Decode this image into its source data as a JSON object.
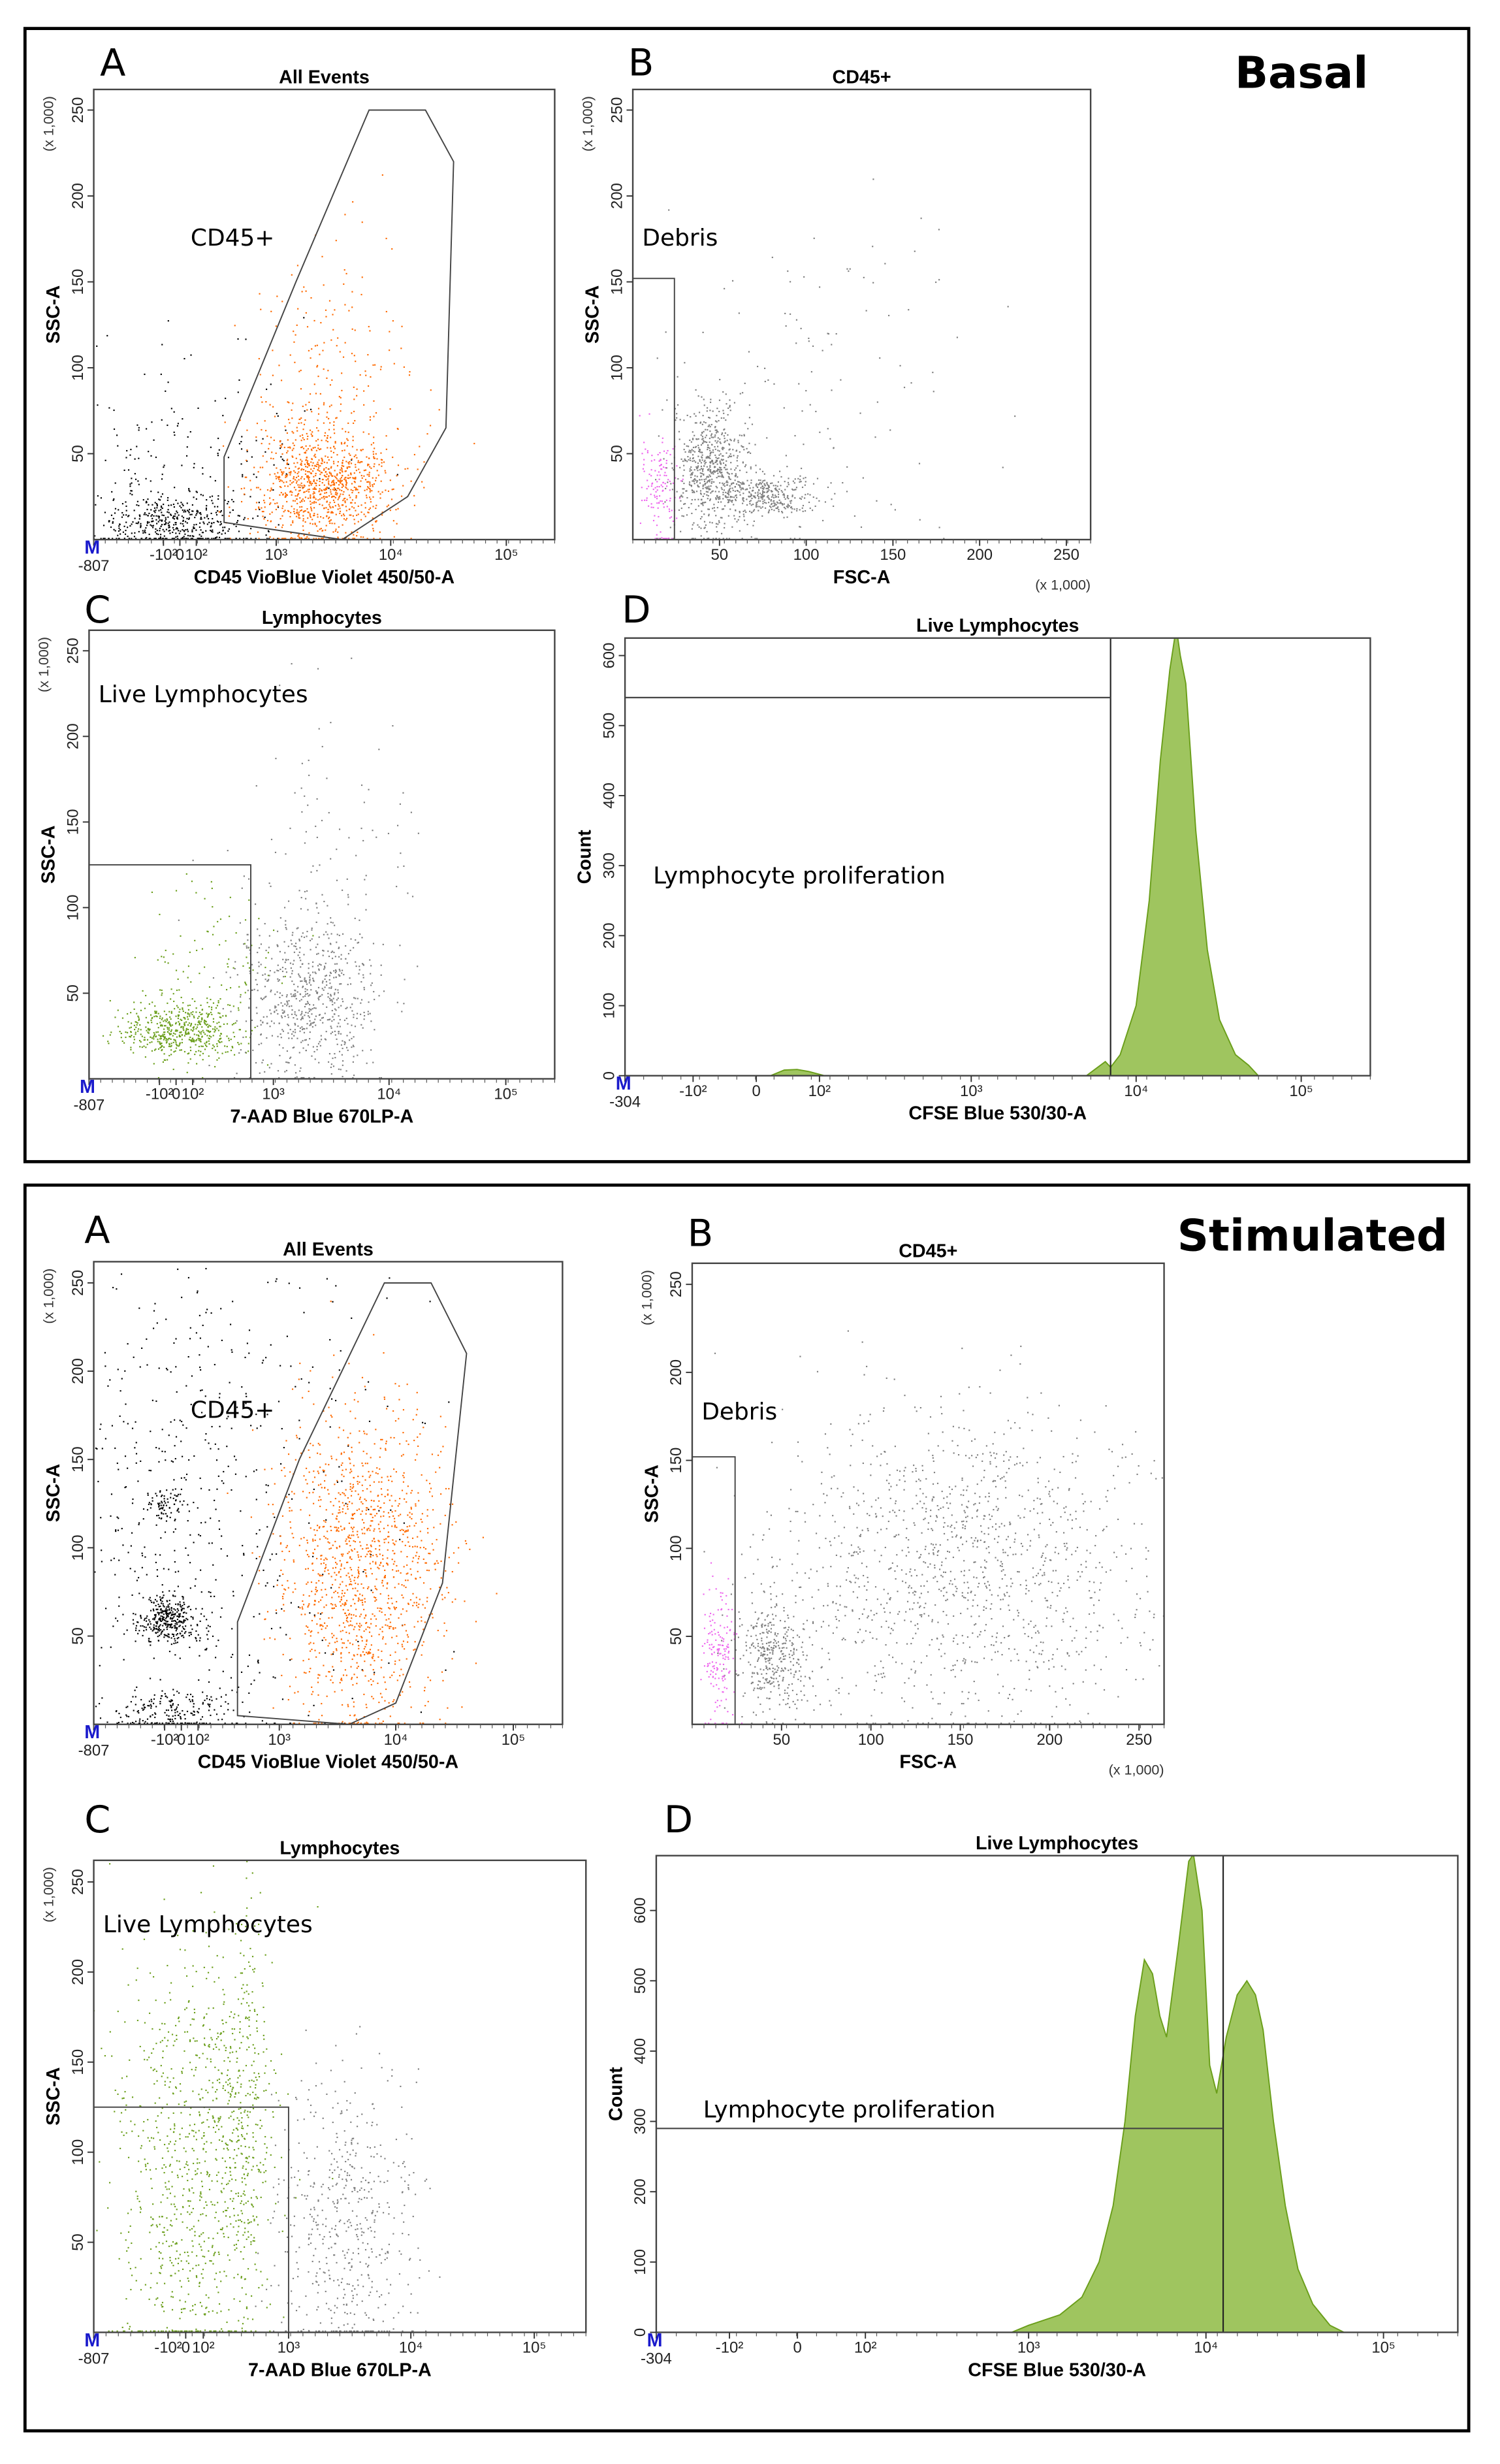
{
  "conditions": [
    {
      "label": "Basal"
    },
    {
      "label": "Stimulated"
    }
  ],
  "colors": {
    "orange": "#ff6a00",
    "black": "#000000",
    "gray": "#7f7f7f",
    "magenta": "#ee66ee",
    "green": "#6a9e1a",
    "hist_fill": "#9fc55f",
    "hist_line": "#6a9e1a",
    "m_marker": "#1a1acc"
  },
  "chart_data": [
    {
      "condition": "Basal",
      "panel": "A",
      "type": "scatter",
      "title": "All Events",
      "xlabel": "CD45 VioBlue Violet 450/50-A",
      "ylabel": "SSC-A",
      "y_multiplier": "(x 1,000)",
      "marker": "M",
      "xscale": "biexp",
      "xlim": [
        -807,
        262144
      ],
      "ylim": [
        0,
        262
      ],
      "xticks": [
        {
          "v": -807,
          "t": "-807"
        },
        {
          "v": -100,
          "t": "-10²"
        },
        {
          "v": 0,
          "t": "0"
        },
        {
          "v": 100,
          "t": "10²"
        },
        {
          "v": 1000,
          "t": "10³"
        },
        {
          "v": 10000,
          "t": "10⁴"
        },
        {
          "v": 100000,
          "t": "10⁵"
        }
      ],
      "yticks": [
        50,
        100,
        150,
        200,
        250
      ],
      "gate": {
        "shape": "polygon",
        "label": "CD45+",
        "points": [
          [
            300,
            14
          ],
          [
            300,
            48
          ],
          [
            1500,
            150
          ],
          [
            6500,
            250
          ],
          [
            20000,
            250
          ],
          [
            35000,
            220
          ],
          [
            30000,
            65
          ],
          [
            14000,
            25
          ],
          [
            3800,
            0
          ],
          [
            300,
            10
          ]
        ]
      },
      "clusters": [
        {
          "x": -60,
          "sx": 0.3,
          "y": 10,
          "sy": 8,
          "n": 380,
          "color": "black"
        },
        {
          "x": -30,
          "sx": 0.6,
          "y": 40,
          "sy": 35,
          "n": 260,
          "color": "black"
        },
        {
          "x": 2500,
          "sx": 0.3,
          "y": 32,
          "sy": 16,
          "n": 900,
          "color": "orange"
        },
        {
          "x": 3000,
          "sx": 0.35,
          "y": 80,
          "sy": 40,
          "n": 260,
          "color": "orange"
        }
      ]
    },
    {
      "condition": "Basal",
      "panel": "B",
      "type": "scatter",
      "title": "CD45+",
      "xlabel": "FSC-A",
      "ylabel": "SSC-A",
      "y_multiplier": "(x 1,000)",
      "x_multiplier": "(x 1,000)",
      "xscale": "linear",
      "xlim": [
        0,
        264
      ],
      "ylim": [
        0,
        262
      ],
      "xticks": [
        {
          "v": 50,
          "t": "50"
        },
        {
          "v": 100,
          "t": "100"
        },
        {
          "v": 150,
          "t": "150"
        },
        {
          "v": 200,
          "t": "200"
        },
        {
          "v": 250,
          "t": "250"
        }
      ],
      "yticks": [
        50,
        100,
        150,
        200,
        250
      ],
      "gate": {
        "shape": "rect",
        "label": "Debris",
        "points": [
          [
            0,
            0
          ],
          [
            24,
            152
          ]
        ]
      },
      "clusters": [
        {
          "x": 45,
          "sx": 11,
          "y": 42,
          "sy": 18,
          "n": 650,
          "color": "gray"
        },
        {
          "x": 78,
          "sx": 14,
          "y": 26,
          "sy": 6,
          "n": 330,
          "color": "gray"
        },
        {
          "x": 90,
          "sx": 55,
          "y": 80,
          "sy": 55,
          "n": 150,
          "color": "gray"
        },
        {
          "x": 14,
          "sx": 5,
          "y": 30,
          "sy": 16,
          "n": 130,
          "color": "magenta"
        }
      ]
    },
    {
      "condition": "Basal",
      "panel": "C",
      "type": "scatter",
      "title": "Lymphocytes",
      "xlabel": "7-AAD Blue 670LP-A",
      "ylabel": "SSC-A",
      "y_multiplier": "(x 1,000)",
      "marker": "M",
      "xscale": "biexp",
      "xlim": [
        -807,
        262144
      ],
      "ylim": [
        0,
        262
      ],
      "xticks": [
        {
          "v": -807,
          "t": "-807"
        },
        {
          "v": -100,
          "t": "-10²"
        },
        {
          "v": 0,
          "t": "0"
        },
        {
          "v": 100,
          "t": "10²"
        },
        {
          "v": 1000,
          "t": "10³"
        },
        {
          "v": 10000,
          "t": "10⁴"
        },
        {
          "v": 100000,
          "t": "10⁵"
        }
      ],
      "yticks": [
        50,
        100,
        150,
        200,
        250
      ],
      "gate": {
        "shape": "rect",
        "label": "Live Lymphocytes",
        "points": [
          [
            -807,
            0
          ],
          [
            620,
            125
          ]
        ]
      },
      "clusters": [
        {
          "x": 20,
          "sx": 0.25,
          "y": 28,
          "sy": 8,
          "n": 520,
          "color": "green"
        },
        {
          "x": 150,
          "sx": 0.3,
          "y": 60,
          "sy": 25,
          "n": 120,
          "color": "green"
        },
        {
          "x": 2000,
          "sx": 0.3,
          "y": 45,
          "sy": 25,
          "n": 650,
          "color": "gray"
        },
        {
          "x": 2500,
          "sx": 0.4,
          "y": 120,
          "sy": 50,
          "n": 120,
          "color": "gray"
        }
      ]
    },
    {
      "condition": "Basal",
      "panel": "D",
      "type": "area",
      "title": "Live Lymphocytes",
      "xlabel": "CFSE Blue 530/30-A",
      "ylabel": "Count",
      "marker": "M",
      "xscale": "biexp100",
      "xlim": [
        -304,
        262144
      ],
      "ylim": [
        0,
        625
      ],
      "xticks": [
        {
          "v": -304,
          "t": "-304"
        },
        {
          "v": -100,
          "t": "-10²"
        },
        {
          "v": 0,
          "t": "0"
        },
        {
          "v": 100,
          "t": "10²"
        },
        {
          "v": 1000,
          "t": "10³"
        },
        {
          "v": 10000,
          "t": "10⁴"
        },
        {
          "v": 100000,
          "t": "10⁵"
        }
      ],
      "yticks": [
        0,
        100,
        200,
        300,
        400,
        500,
        600
      ],
      "gate": {
        "shape": "hline",
        "label": "Lymphocyte proliferation",
        "x_split": 7000,
        "y_level": 540
      },
      "x": [
        20,
        40,
        60,
        80,
        110,
        5000,
        6500,
        7000,
        8000,
        10000,
        12000,
        14000,
        16000,
        17500,
        18500,
        20000,
        23000,
        27000,
        32000,
        40000,
        48000,
        55000
      ],
      "y": [
        0,
        8,
        9,
        6,
        0,
        0,
        20,
        12,
        30,
        100,
        250,
        450,
        580,
        640,
        600,
        560,
        350,
        180,
        80,
        30,
        15,
        0
      ]
    },
    {
      "condition": "Stimulated",
      "panel": "A",
      "type": "scatter",
      "title": "All Events",
      "xlabel": "CD45 VioBlue Violet 450/50-A",
      "ylabel": "SSC-A",
      "y_multiplier": "(x 1,000)",
      "marker": "M",
      "xscale": "biexp",
      "xlim": [
        -807,
        262144
      ],
      "ylim": [
        0,
        262
      ],
      "xticks": [
        {
          "v": -807,
          "t": "-807"
        },
        {
          "v": -100,
          "t": "-10²"
        },
        {
          "v": 0,
          "t": "0"
        },
        {
          "v": 100,
          "t": "10²"
        },
        {
          "v": 1000,
          "t": "10³"
        },
        {
          "v": 10000,
          "t": "10⁴"
        },
        {
          "v": 100000,
          "t": "10⁵"
        }
      ],
      "yticks": [
        50,
        100,
        150,
        200,
        250
      ],
      "gate": {
        "shape": "polygon",
        "label": "CD45+",
        "points": [
          [
            400,
            5
          ],
          [
            400,
            58
          ],
          [
            1500,
            150
          ],
          [
            8000,
            250
          ],
          [
            20000,
            250
          ],
          [
            40000,
            210
          ],
          [
            25000,
            80
          ],
          [
            10000,
            12
          ],
          [
            4000,
            0
          ],
          [
            400,
            5
          ]
        ]
      },
      "clusters": [
        {
          "x": -90,
          "sx": 0.12,
          "y": 60,
          "sy": 7,
          "n": 350,
          "color": "black"
        },
        {
          "x": -110,
          "sx": 0.1,
          "y": 125,
          "sy": 5,
          "n": 70,
          "color": "black"
        },
        {
          "x": -60,
          "sx": 0.3,
          "y": 8,
          "sy": 6,
          "n": 200,
          "color": "black"
        },
        {
          "x": 50,
          "sx": 0.8,
          "y": 130,
          "sy": 80,
          "n": 650,
          "color": "black"
        },
        {
          "x": 5000,
          "sx": 0.35,
          "y": 90,
          "sy": 45,
          "n": 1300,
          "color": "orange"
        }
      ]
    },
    {
      "condition": "Stimulated",
      "panel": "B",
      "type": "scatter",
      "title": "CD45+",
      "xlabel": "FSC-A",
      "ylabel": "SSC-A",
      "y_multiplier": "(x 1,000)",
      "x_multiplier": "(x 1,000)",
      "xscale": "linear",
      "xlim": [
        0,
        264
      ],
      "ylim": [
        0,
        262
      ],
      "xticks": [
        {
          "v": 50,
          "t": "50"
        },
        {
          "v": 100,
          "t": "100"
        },
        {
          "v": 150,
          "t": "150"
        },
        {
          "v": 200,
          "t": "200"
        },
        {
          "v": 250,
          "t": "250"
        }
      ],
      "yticks": [
        50,
        100,
        150,
        200,
        250
      ],
      "gate": {
        "shape": "rect",
        "label": "Debris",
        "points": [
          [
            0,
            0
          ],
          [
            24,
            152
          ]
        ]
      },
      "clusters": [
        {
          "x": 150,
          "sx": 55,
          "y": 90,
          "sy": 45,
          "n": 1300,
          "color": "gray"
        },
        {
          "x": 45,
          "sx": 9,
          "y": 38,
          "sy": 15,
          "n": 350,
          "color": "gray"
        },
        {
          "x": 14,
          "sx": 5,
          "y": 40,
          "sy": 20,
          "n": 160,
          "color": "magenta"
        }
      ]
    },
    {
      "condition": "Stimulated",
      "panel": "C",
      "type": "scatter",
      "title": "Lymphocytes",
      "xlabel": "7-AAD Blue 670LP-A",
      "ylabel": "SSC-A",
      "y_multiplier": "(x 1,000)",
      "marker": "M",
      "xscale": "biexp",
      "xlim": [
        -807,
        262144
      ],
      "ylim": [
        0,
        262
      ],
      "xticks": [
        {
          "v": -807,
          "t": "-807"
        },
        {
          "v": -100,
          "t": "-10²"
        },
        {
          "v": 0,
          "t": "0"
        },
        {
          "v": 100,
          "t": "10²"
        },
        {
          "v": 1000,
          "t": "10³"
        },
        {
          "v": 10000,
          "t": "10⁴"
        },
        {
          "v": 100000,
          "t": "10⁵"
        }
      ],
      "yticks": [
        50,
        100,
        150,
        200,
        250
      ],
      "gate": {
        "shape": "rect",
        "label": "Live Lymphocytes",
        "points": [
          [
            -807,
            0
          ],
          [
            1000,
            125
          ]
        ]
      },
      "clusters": [
        {
          "x": 0,
          "sx": 0.3,
          "y": 90,
          "sy": 60,
          "n": 800,
          "color": "green"
        },
        {
          "x": 400,
          "sx": 0.12,
          "y": 120,
          "sy": 55,
          "n": 350,
          "color": "green"
        },
        {
          "x": 3000,
          "sx": 0.3,
          "y": 60,
          "sy": 45,
          "n": 550,
          "color": "gray"
        }
      ]
    },
    {
      "condition": "Stimulated",
      "panel": "D",
      "type": "area",
      "title": "Live Lymphocytes",
      "xlabel": "CFSE Blue 530/30-A",
      "ylabel": "Count",
      "marker": "M",
      "xscale": "biexp100",
      "xlim": [
        -304,
        262144
      ],
      "ylim": [
        0,
        678
      ],
      "xticks": [
        {
          "v": -304,
          "t": "-304"
        },
        {
          "v": -100,
          "t": "-10²"
        },
        {
          "v": 0,
          "t": "0"
        },
        {
          "v": 100,
          "t": "10²"
        },
        {
          "v": 1000,
          "t": "10³"
        },
        {
          "v": 10000,
          "t": "10⁴"
        },
        {
          "v": 100000,
          "t": "10⁵"
        }
      ],
      "yticks": [
        0,
        100,
        200,
        300,
        400,
        500,
        600
      ],
      "gate": {
        "shape": "hline",
        "label": "Lymphocyte proliferation",
        "x_split": 12500,
        "y_level": 290
      },
      "x": [
        800,
        1000,
        1500,
        2000,
        2500,
        3000,
        3500,
        4000,
        4500,
        5000,
        5500,
        6000,
        7000,
        8000,
        8500,
        9500,
        10500,
        11500,
        13000,
        15000,
        17000,
        19000,
        21000,
        24000,
        28000,
        33000,
        40000,
        50000,
        60000
      ],
      "y": [
        0,
        10,
        25,
        50,
        100,
        180,
        300,
        450,
        530,
        510,
        450,
        420,
        550,
        670,
        680,
        600,
        380,
        340,
        420,
        480,
        500,
        480,
        430,
        300,
        180,
        90,
        40,
        10,
        0
      ]
    }
  ]
}
